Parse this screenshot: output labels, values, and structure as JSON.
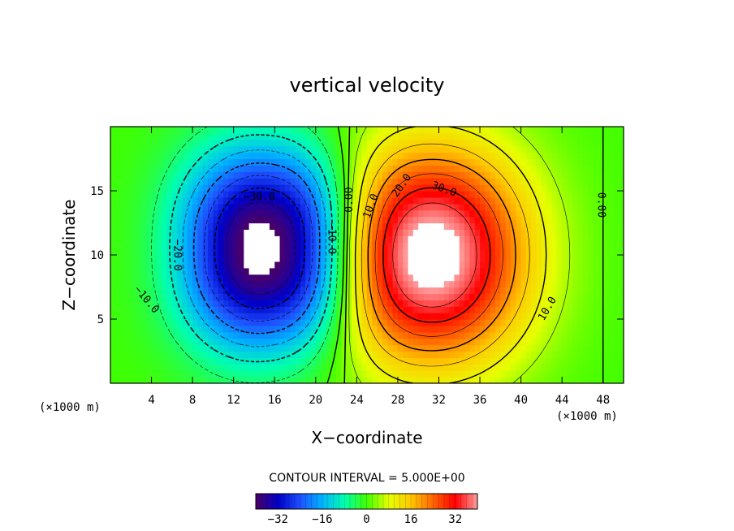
{
  "chart_data": {
    "type": "heatmap",
    "title": "vertical velocity",
    "xlabel": "X−coordinate",
    "ylabel": "Z−coordinate",
    "x_unit_left": "(×1000 m)",
    "x_unit_right": "(×1000 m)",
    "xlim": [
      0,
      50
    ],
    "ylim": [
      0,
      20
    ],
    "x_ticks": [
      4,
      8,
      12,
      16,
      20,
      24,
      28,
      32,
      36,
      40,
      44,
      48
    ],
    "x_tick_labels": [
      "4",
      "8",
      "12",
      "16",
      "20",
      "24",
      "28",
      "32",
      "36",
      "40",
      "44",
      "48"
    ],
    "y_ticks": [
      5,
      10,
      15
    ],
    "y_tick_labels": [
      "5",
      "10",
      "15"
    ],
    "contour_interval_text": "CONTOUR INTERVAL = 5.000E+00",
    "contour_interval": 5,
    "colorbar": {
      "range": [
        -40,
        40
      ],
      "ticks": [
        -32,
        -16,
        0,
        16,
        32
      ],
      "tick_labels": [
        "−32",
        "−16",
        "0",
        "16",
        "32"
      ],
      "colors": [
        "#4b0066",
        "#0000c8",
        "#1e50ff",
        "#00b4ff",
        "#00ffb0",
        "#40ff00",
        "#e6ff00",
        "#ffc800",
        "#ff6400",
        "#ff0000",
        "#ff9e9e"
      ]
    },
    "features": {
      "downdraft": {
        "center": [
          15.5,
          10.5
        ],
        "min": -40
      },
      "updraft": {
        "center": [
          31,
          10
        ],
        "max": 40
      }
    },
    "contour_labels": [
      {
        "text": "−30.0",
        "x": 14.5,
        "y": 14.5,
        "angle": 0
      },
      {
        "text": "−20.0",
        "x": 6.5,
        "y": 10,
        "angle": 90
      },
      {
        "text": "−10.0",
        "x": 3.5,
        "y": 6.5,
        "angle": 50
      },
      {
        "text": "−10.0",
        "x": 21.5,
        "y": 11.3,
        "angle": 90
      },
      {
        "text": "0.00",
        "x": 23.3,
        "y": 14.3,
        "angle": -90
      },
      {
        "text": "0.00",
        "x": 47.8,
        "y": 13.9,
        "angle": 90
      },
      {
        "text": "10.0",
        "x": 25.4,
        "y": 13.8,
        "angle": -70
      },
      {
        "text": "20.0",
        "x": 28.4,
        "y": 15.4,
        "angle": -55
      },
      {
        "text": "30.0",
        "x": 32.5,
        "y": 15.1,
        "angle": 20
      },
      {
        "text": "10.0",
        "x": 42.6,
        "y": 5.8,
        "angle": -60
      }
    ]
  }
}
